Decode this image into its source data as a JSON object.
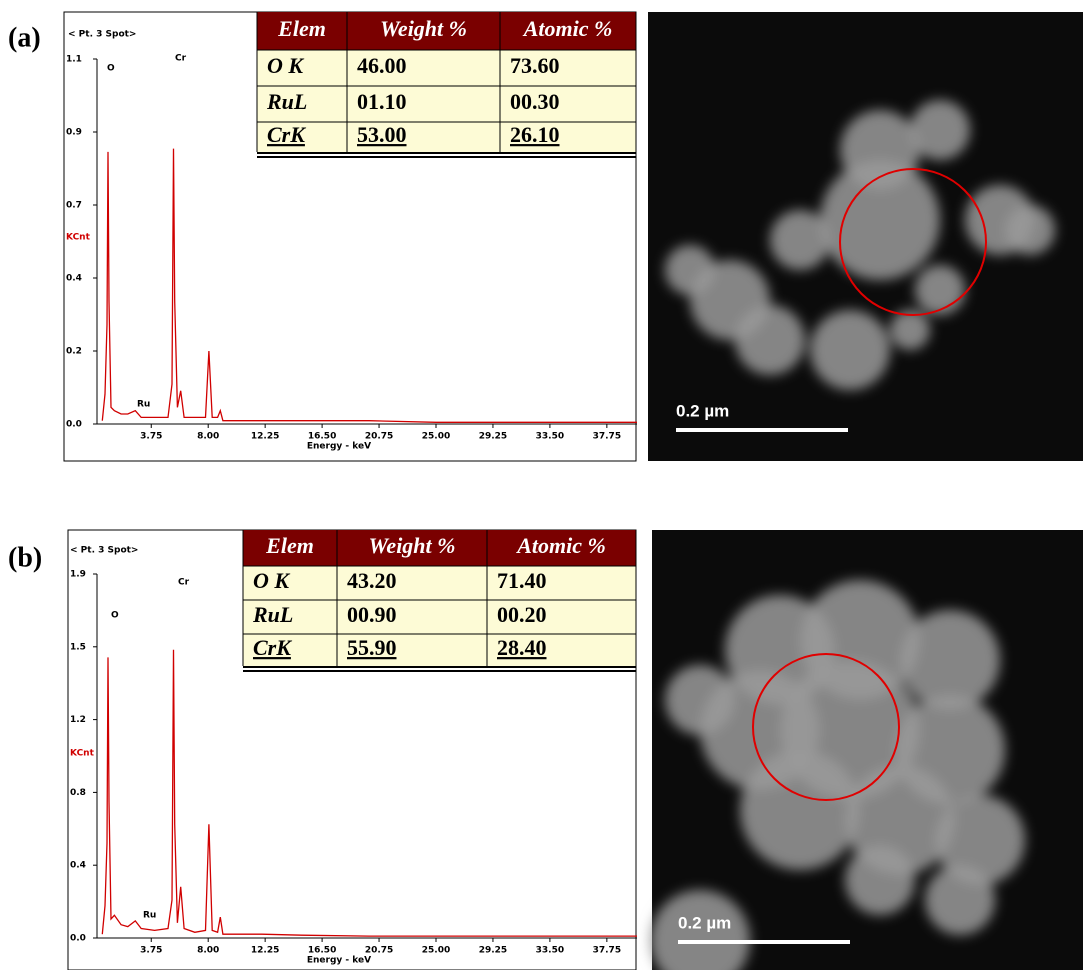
{
  "chart_data": [
    {
      "type": "line",
      "title": "< Pt. 3 Spot>",
      "ylabel": "KCnt",
      "xlabel": "Energy - keV",
      "color": "#d00000",
      "annotations": [
        "O",
        "Cr",
        "Ru"
      ],
      "x": [
        0.1,
        0.3,
        0.45,
        0.52,
        0.6,
        0.75,
        1.0,
        1.5,
        2.0,
        2.56,
        3.0,
        4.0,
        5.0,
        5.3,
        5.41,
        5.5,
        5.7,
        5.95,
        6.2,
        7.0,
        7.8,
        8.05,
        8.3,
        8.7,
        8.9,
        9.1,
        10,
        12,
        15,
        20,
        25,
        30,
        35,
        40
      ],
      "values": [
        0.01,
        0.09,
        0.3,
        0.82,
        0.37,
        0.05,
        0.04,
        0.03,
        0.03,
        0.04,
        0.02,
        0.02,
        0.02,
        0.12,
        0.83,
        0.37,
        0.05,
        0.1,
        0.02,
        0.02,
        0.02,
        0.22,
        0.02,
        0.02,
        0.04,
        0.01,
        0.01,
        0.01,
        0.01,
        0.01,
        0.005,
        0.005,
        0.005,
        0.005
      ],
      "xlim": [
        0,
        40
      ],
      "ylim": [
        0,
        1.1
      ],
      "xticks": [
        3.75,
        {
          "value": 8,
          "label": "8.00"
        },
        12.25,
        {
          "value": 16.5,
          "label": "16.50"
        },
        20.75,
        {
          "value": 25,
          "label": "25.00"
        },
        29.25,
        {
          "value": 33.5,
          "label": "33.50"
        },
        37.75
      ],
      "yticks": [
        {
          "value": 0,
          "label": "0.0"
        },
        {
          "value": 0.22,
          "label": "0.2"
        },
        {
          "value": 0.44,
          "label": "0.4"
        },
        {
          "value": 0.66,
          "label": "0.7"
        },
        {
          "value": 0.88,
          "label": "0.9"
        },
        1.1
      ]
    },
    {
      "type": "line",
      "title": "< Pt. 3 Spot>",
      "ylabel": "KCnt",
      "xlabel": "Energy - keV",
      "color": "#d00000",
      "annotations": [
        "O",
        "Cr",
        "Ru"
      ],
      "x": [
        0.1,
        0.3,
        0.45,
        0.52,
        0.6,
        0.75,
        1.0,
        1.5,
        2.0,
        2.56,
        3.0,
        4.0,
        5.0,
        5.3,
        5.41,
        5.5,
        5.7,
        5.95,
        6.2,
        7.0,
        7.8,
        8.05,
        8.3,
        8.7,
        8.9,
        9.1,
        10,
        12,
        15,
        20,
        25,
        30,
        35,
        40
      ],
      "values": [
        0.02,
        0.17,
        0.5,
        1.48,
        0.72,
        0.1,
        0.12,
        0.07,
        0.06,
        0.09,
        0.05,
        0.04,
        0.05,
        0.2,
        1.52,
        0.6,
        0.08,
        0.27,
        0.05,
        0.03,
        0.04,
        0.6,
        0.04,
        0.03,
        0.11,
        0.02,
        0.02,
        0.02,
        0.015,
        0.01,
        0.01,
        0.01,
        0.01,
        0.01
      ],
      "xlim": [
        0,
        40
      ],
      "ylim": [
        0,
        1.92
      ],
      "xticks": [
        3.75,
        {
          "value": 8,
          "label": "8.00"
        },
        12.25,
        {
          "value": 16.5,
          "label": "16.50"
        },
        20.75,
        {
          "value": 25,
          "label": "25.00"
        },
        29.25,
        {
          "value": 33.5,
          "label": "33.50"
        },
        37.75
      ],
      "yticks": [
        {
          "value": 0,
          "label": "0.0"
        },
        {
          "value": 0.384,
          "label": "0.4"
        },
        {
          "value": 0.768,
          "label": "0.8"
        },
        {
          "value": 1.152,
          "label": "1.2"
        },
        {
          "value": 1.536,
          "label": "1.5"
        },
        {
          "value": 1.92,
          "label": "1.9"
        }
      ]
    }
  ],
  "panels": [
    {
      "label": "(a)",
      "table": {
        "header": [
          "Elem",
          "Weight %",
          "Atomic %"
        ],
        "rows": [
          [
            "O K",
            "46.00",
            "73.60"
          ],
          [
            "RuL",
            "01.10",
            "00.30"
          ],
          [
            "CrK",
            "53.00",
            "26.10"
          ]
        ]
      },
      "scale_bar": "0.2 µm"
    },
    {
      "label": "(b)",
      "table": {
        "header": [
          "Elem",
          "Weight %",
          "Atomic %"
        ],
        "rows": [
          [
            "O K",
            "43.20",
            "71.40"
          ],
          [
            "RuL",
            "00.90",
            "00.20"
          ],
          [
            "CrK",
            "55.90",
            "28.40"
          ]
        ]
      },
      "scale_bar": "0.2 µm"
    }
  ]
}
